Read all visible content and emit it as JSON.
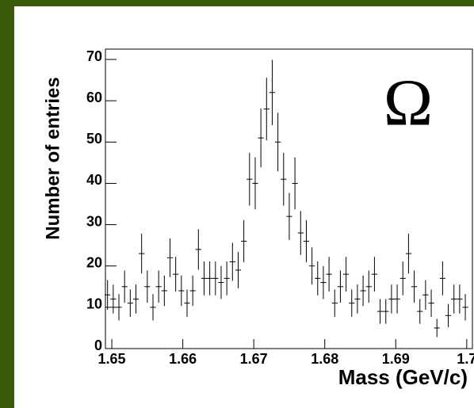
{
  "chart_data": {
    "type": "errorbar",
    "annotation": "Ω",
    "xlabel": "Mass (GeV/c)",
    "ylabel": "Number of entries",
    "color": "#000000",
    "xlim": [
      1.6491,
      1.7008
    ],
    "ylim": [
      0,
      72.5
    ],
    "xticks": [
      1.65,
      1.66,
      1.67,
      1.68,
      1.69,
      1.7
    ],
    "yticks": [
      0,
      10,
      20,
      30,
      40,
      50,
      60,
      70
    ],
    "x": [
      1.6494,
      1.6502,
      1.651,
      1.6518,
      1.6526,
      1.6534,
      1.6542,
      1.655,
      1.6558,
      1.6566,
      1.6574,
      1.6582,
      1.659,
      1.6598,
      1.6606,
      1.6614,
      1.6622,
      1.663,
      1.6638,
      1.6646,
      1.6654,
      1.6662,
      1.667,
      1.6678,
      1.6686,
      1.6694,
      1.6702,
      1.671,
      1.6718,
      1.6726,
      1.6734,
      1.6742,
      1.675,
      1.6758,
      1.6766,
      1.6774,
      1.6782,
      1.679,
      1.6798,
      1.6806,
      1.6814,
      1.6822,
      1.683,
      1.6838,
      1.6846,
      1.6854,
      1.6862,
      1.687,
      1.6878,
      1.6886,
      1.6894,
      1.6902,
      1.691,
      1.6918,
      1.6926,
      1.6934,
      1.6942,
      1.695,
      1.6958,
      1.6966,
      1.6974,
      1.6982,
      1.699,
      1.6998
    ],
    "values": [
      13,
      12,
      10,
      15,
      11,
      12,
      23,
      15,
      10,
      15,
      14,
      22,
      18,
      14,
      11,
      14,
      24,
      17,
      17,
      17,
      16,
      17,
      21,
      19,
      26,
      41,
      40,
      51,
      58,
      62,
      50,
      41,
      32,
      40,
      28,
      26,
      20,
      17,
      16,
      18,
      11,
      15,
      18,
      11,
      12,
      14,
      15,
      18,
      9,
      9,
      12,
      12,
      17,
      23,
      15,
      9,
      13,
      11,
      5,
      17,
      8,
      12,
      12,
      10
    ],
    "errors": [
      3.6,
      3.5,
      3.2,
      3.9,
      3.3,
      3.5,
      4.8,
      3.9,
      3.2,
      3.9,
      3.7,
      4.7,
      4.2,
      3.7,
      3.3,
      3.7,
      4.9,
      4.1,
      4.1,
      4.1,
      4,
      4.1,
      4.6,
      4.4,
      5.1,
      6.4,
      6.3,
      7.1,
      7.6,
      7.9,
      7.1,
      6.4,
      5.7,
      6.3,
      5.3,
      5.1,
      4.5,
      4.1,
      4,
      4.2,
      3.3,
      3.9,
      4.2,
      3.3,
      3.5,
      3.7,
      3.9,
      4.2,
      3,
      3,
      3.5,
      3.5,
      4.1,
      4.8,
      3.9,
      3,
      3.6,
      3.3,
      2.2,
      4.1,
      2.8,
      3.5,
      3.5,
      3.2
    ]
  }
}
